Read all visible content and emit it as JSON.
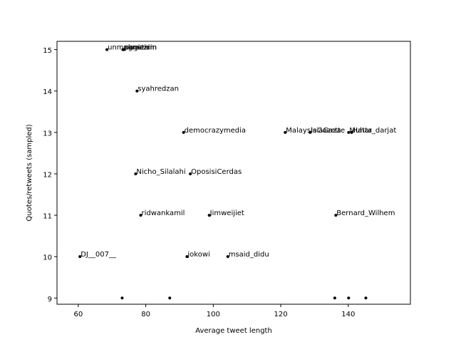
{
  "chart_data": {
    "type": "scatter",
    "title": "",
    "xlabel": "Average tweet length",
    "ylabel": "Quotes/retweets (sampled)",
    "xlim": [
      53.7,
      158.4
    ],
    "ylim": [
      8.85,
      15.2
    ],
    "xticks": [
      60,
      80,
      100,
      120,
      140
    ],
    "yticks": [
      9,
      10,
      11,
      12,
      13,
      14,
      15
    ],
    "grid": false,
    "marker_color": "#000000",
    "points": [
      {
        "x": 68.5,
        "y": 15,
        "label": "unmagnetism"
      },
      {
        "x": 73.2,
        "y": 15,
        "label": "nkmazrin"
      },
      {
        "x": 73.5,
        "y": 15,
        "label": "pagiesi"
      },
      {
        "x": 77.4,
        "y": 14,
        "label": "syahredzan"
      },
      {
        "x": 91.2,
        "y": 13,
        "label": "democrazymedia"
      },
      {
        "x": 121.3,
        "y": 13,
        "label": "MalaysiaGazette"
      },
      {
        "x": 128.7,
        "y": 13,
        "label": "IsiaGaza"
      },
      {
        "x": 140.1,
        "y": 13,
        "label": "Muhar_darjat"
      },
      {
        "x": 141.0,
        "y": 13,
        "label": "Hatta"
      },
      {
        "x": 77.0,
        "y": 12,
        "label": "Nicho_Silalahi"
      },
      {
        "x": 93.2,
        "y": 12,
        "label": "OposisiCerdas"
      },
      {
        "x": 78.5,
        "y": 11,
        "label": "ridwankamil"
      },
      {
        "x": 98.8,
        "y": 11,
        "label": "Jimweijiet"
      },
      {
        "x": 136.3,
        "y": 11,
        "label": "Bernard_Wilhem"
      },
      {
        "x": 60.5,
        "y": 10,
        "label": "DJ__007__"
      },
      {
        "x": 92.2,
        "y": 10,
        "label": "jokowi"
      },
      {
        "x": 104.3,
        "y": 10,
        "label": "msaid_didu"
      },
      {
        "x": 73.0,
        "y": 9,
        "label": ""
      },
      {
        "x": 87.1,
        "y": 9,
        "label": ""
      },
      {
        "x": 136.0,
        "y": 9,
        "label": ""
      },
      {
        "x": 140.1,
        "y": 9,
        "label": ""
      },
      {
        "x": 145.2,
        "y": 9,
        "label": ""
      }
    ]
  }
}
